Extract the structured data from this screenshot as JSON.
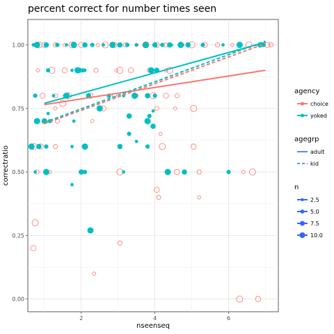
{
  "chart_data": {
    "type": "scatter",
    "title": "percent correct for number times seen",
    "xlabel": "nseenseq",
    "ylabel": "correctratio",
    "xlim": [
      0.55,
      7.35
    ],
    "ylim": [
      -0.05,
      1.1
    ],
    "x_ticks": [
      2,
      4,
      6
    ],
    "y_ticks": [
      0.0,
      0.25,
      0.5,
      0.75,
      1.0
    ],
    "y_tick_labels": [
      "0.00",
      "0.25",
      "0.50",
      "0.75",
      "1.00"
    ],
    "grid": true,
    "colors": {
      "choice": "#F8766D",
      "yoked": "#00BFC4",
      "n_legend": "#3366FF"
    },
    "legends": [
      {
        "title": "agency",
        "entries": [
          "choice",
          "yoked"
        ]
      },
      {
        "title": "agegrp",
        "entries": [
          "adult",
          "kid"
        ]
      },
      {
        "title": "n",
        "entries": [
          "2.5",
          "5.0",
          "7.5",
          "10.0"
        ]
      }
    ],
    "series": [
      {
        "agency": "choice",
        "marker": "open-circle",
        "points": [
          [
            0.72,
            1.0
          ],
          [
            0.85,
            1.0
          ],
          [
            1.0,
            1.0
          ],
          [
            1.3,
            1.0
          ],
          [
            1.55,
            1.0
          ],
          [
            1.75,
            1.0
          ],
          [
            2.0,
            1.0
          ],
          [
            2.1,
            1.0
          ],
          [
            2.45,
            1.0
          ],
          [
            2.65,
            1.0
          ],
          [
            2.9,
            1.0
          ],
          [
            3.2,
            1.0
          ],
          [
            3.5,
            1.0
          ],
          [
            3.75,
            1.0
          ],
          [
            4.05,
            1.0
          ],
          [
            4.3,
            1.0
          ],
          [
            4.75,
            1.0
          ],
          [
            5.0,
            1.0
          ],
          [
            5.35,
            1.0
          ],
          [
            5.7,
            1.0
          ],
          [
            6.1,
            1.0
          ],
          [
            6.55,
            1.0
          ],
          [
            7.05,
            1.0
          ],
          [
            7.15,
            1.0
          ],
          [
            0.82,
            0.9
          ],
          [
            1.2,
            0.9
          ],
          [
            1.55,
            0.9
          ],
          [
            2.4,
            0.9
          ],
          [
            2.95,
            0.9
          ],
          [
            3.05,
            0.9
          ],
          [
            3.35,
            0.9
          ],
          [
            3.85,
            0.9
          ],
          [
            4.3,
            0.9
          ],
          [
            4.4,
            0.9
          ],
          [
            0.95,
            0.8
          ],
          [
            1.3,
            0.8
          ],
          [
            1.55,
            0.8
          ],
          [
            1.65,
            0.8
          ],
          [
            2.25,
            0.8
          ],
          [
            2.9,
            0.8
          ],
          [
            3.5,
            0.8
          ],
          [
            3.95,
            0.8
          ],
          [
            4.3,
            0.8
          ],
          [
            4.6,
            0.8
          ],
          [
            1.3,
            0.75
          ],
          [
            1.5,
            0.77
          ],
          [
            2.6,
            0.75
          ],
          [
            4.05,
            0.75
          ],
          [
            4.55,
            0.75
          ],
          [
            5.05,
            0.75
          ],
          [
            1.0,
            0.7
          ],
          [
            1.35,
            0.7
          ],
          [
            2.3,
            0.7
          ],
          [
            0.72,
            0.6
          ],
          [
            0.9,
            0.6
          ],
          [
            1.3,
            0.6
          ],
          [
            4.15,
            0.65
          ],
          [
            4.2,
            0.6
          ],
          [
            5.05,
            0.6
          ],
          [
            0.8,
            0.5
          ],
          [
            1.15,
            0.5
          ],
          [
            3.05,
            0.5
          ],
          [
            4.6,
            0.5
          ],
          [
            5.2,
            0.5
          ],
          [
            6.4,
            0.5
          ],
          [
            6.65,
            0.5
          ],
          [
            4.05,
            0.43
          ],
          [
            4.1,
            0.4
          ],
          [
            5.2,
            0.4
          ],
          [
            0.75,
            0.3
          ],
          [
            0.7,
            0.2
          ],
          [
            3.05,
            0.22
          ],
          [
            2.35,
            0.1
          ],
          [
            6.3,
            0.0
          ],
          [
            6.8,
            0.0
          ]
        ]
      },
      {
        "agency": "yoked",
        "marker": "filled-circle",
        "points": [
          [
            0.7,
            1.0
          ],
          [
            0.8,
            1.0
          ],
          [
            1.05,
            1.0
          ],
          [
            1.35,
            1.0
          ],
          [
            1.6,
            1.0
          ],
          [
            1.8,
            1.0
          ],
          [
            2.1,
            1.0
          ],
          [
            2.3,
            1.0
          ],
          [
            2.6,
            1.0
          ],
          [
            2.85,
            1.0
          ],
          [
            3.05,
            1.0
          ],
          [
            3.25,
            1.0
          ],
          [
            3.5,
            1.0
          ],
          [
            3.75,
            1.0
          ],
          [
            4.0,
            1.0
          ],
          [
            4.2,
            1.0
          ],
          [
            4.45,
            1.0
          ],
          [
            4.7,
            1.0
          ],
          [
            4.9,
            1.0
          ],
          [
            5.3,
            1.0
          ],
          [
            5.85,
            1.0
          ],
          [
            6.3,
            1.0
          ],
          [
            6.85,
            1.0
          ],
          [
            1.1,
            0.9
          ],
          [
            1.75,
            0.9
          ],
          [
            1.9,
            0.9
          ],
          [
            1.95,
            0.9
          ],
          [
            2.05,
            0.9
          ],
          [
            2.1,
            0.9
          ],
          [
            3.9,
            0.9
          ],
          [
            4.05,
            0.9
          ],
          [
            0.75,
            0.8
          ],
          [
            1.25,
            0.8
          ],
          [
            1.6,
            0.8
          ],
          [
            2.2,
            0.8
          ],
          [
            2.75,
            0.8
          ],
          [
            3.15,
            0.8
          ],
          [
            3.45,
            0.8
          ],
          [
            3.8,
            0.8
          ],
          [
            4.0,
            0.8
          ],
          [
            1.1,
            0.73
          ],
          [
            2.5,
            0.75
          ],
          [
            3.3,
            0.72
          ],
          [
            3.85,
            0.72
          ],
          [
            3.95,
            0.74
          ],
          [
            0.8,
            0.7
          ],
          [
            1.0,
            0.7
          ],
          [
            1.15,
            0.7
          ],
          [
            1.8,
            0.7
          ],
          [
            3.8,
            0.7
          ],
          [
            3.95,
            0.68
          ],
          [
            3.3,
            0.65
          ],
          [
            3.5,
            0.62
          ],
          [
            0.65,
            0.6
          ],
          [
            0.85,
            0.6
          ],
          [
            1.05,
            0.6
          ],
          [
            1.75,
            0.6
          ],
          [
            2.1,
            0.6
          ],
          [
            3.05,
            0.6
          ],
          [
            3.8,
            0.6
          ],
          [
            0.75,
            0.5
          ],
          [
            1.05,
            0.5
          ],
          [
            2.0,
            0.5
          ],
          [
            2.1,
            0.5
          ],
          [
            3.15,
            0.5
          ],
          [
            4.35,
            0.5
          ],
          [
            4.8,
            0.5
          ],
          [
            6.0,
            0.5
          ],
          [
            1.75,
            0.45
          ],
          [
            2.25,
            0.27
          ],
          [
            4.4,
            1.0
          ],
          [
            6.95,
            1.0
          ]
        ]
      }
    ],
    "fit_lines": [
      {
        "agency": "choice",
        "agegrp": "adult",
        "x": [
          1.0,
          7.0
        ],
        "y": [
          0.765,
          0.9
        ]
      },
      {
        "agency": "yoked",
        "agegrp": "adult",
        "x": [
          1.0,
          7.0
        ],
        "y": [
          0.77,
          1.01
        ]
      },
      {
        "agency": "choice",
        "agegrp": "kid",
        "x": [
          1.0,
          7.0
        ],
        "y": [
          0.69,
          1.005
        ]
      },
      {
        "agency": "yoked",
        "agegrp": "kid",
        "x": [
          1.0,
          7.0
        ],
        "y": [
          0.695,
          1.015
        ]
      }
    ]
  }
}
